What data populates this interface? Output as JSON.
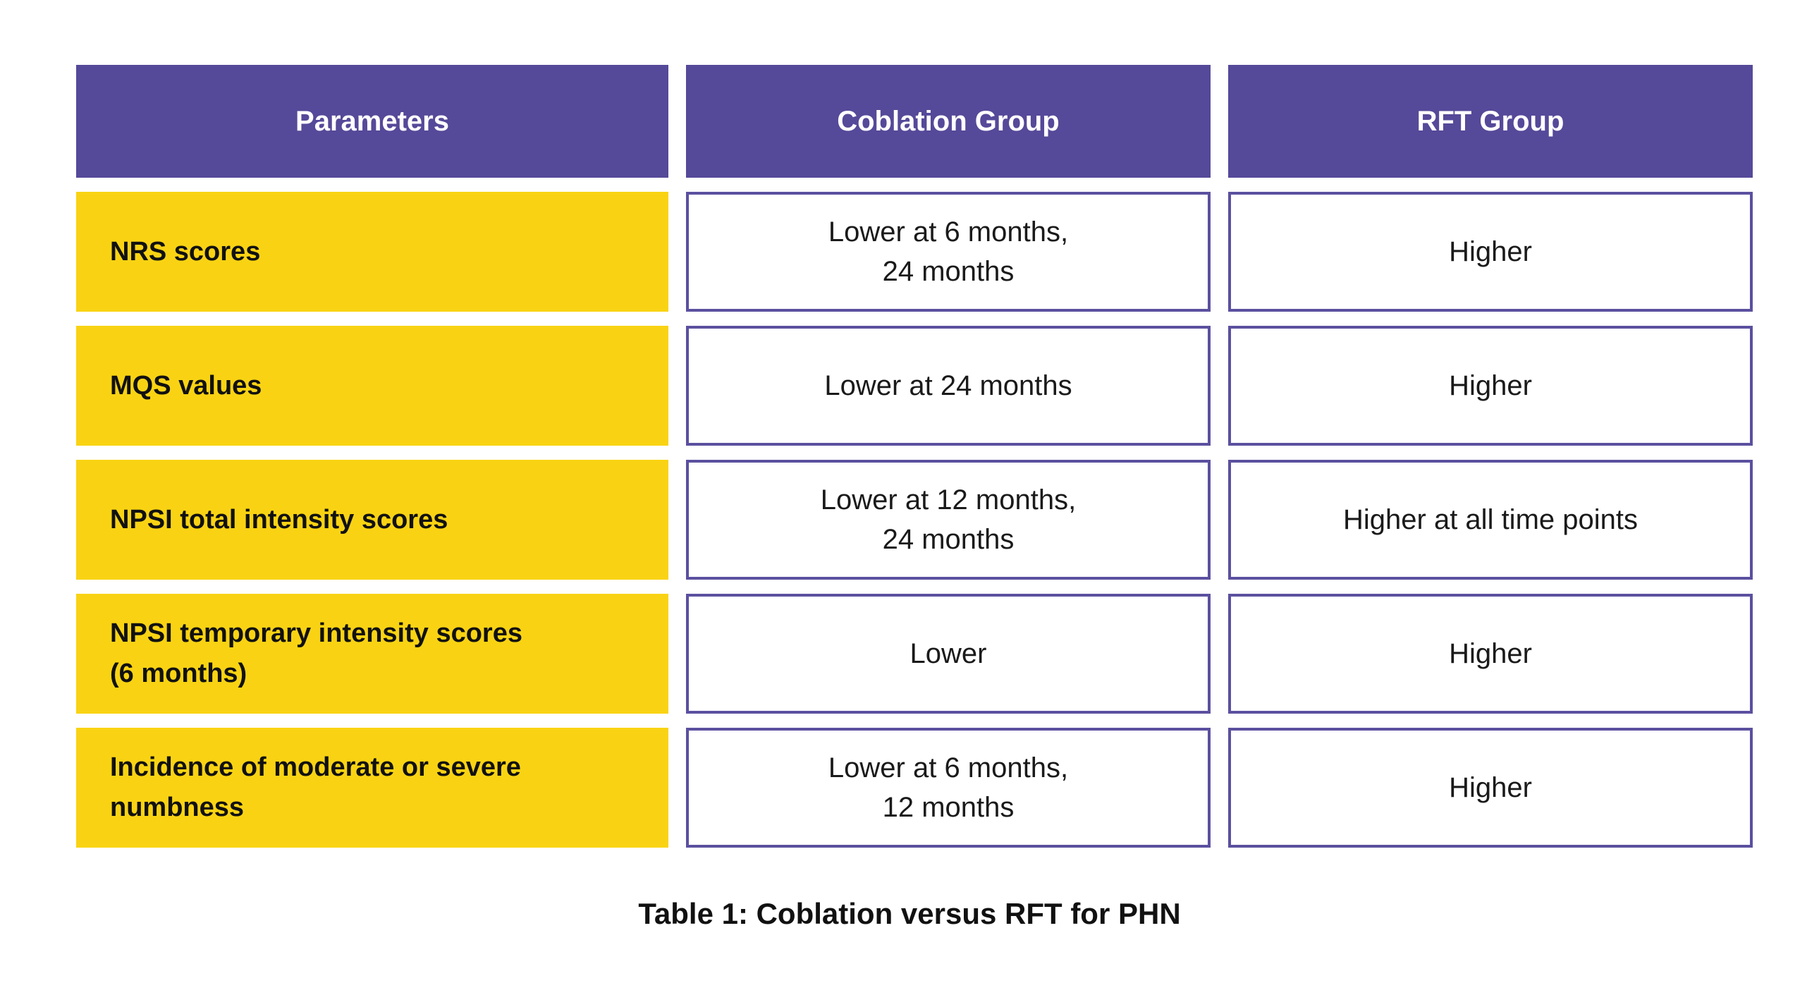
{
  "table": {
    "headers": [
      {
        "id": "parameters",
        "label": "Parameters"
      },
      {
        "id": "coblation-group",
        "label": "Coblation Group"
      },
      {
        "id": "rft-group",
        "label": "RFT Group"
      }
    ],
    "rows": [
      {
        "parameter": "NRS scores",
        "coblation": "Lower at 6 months,\n24 months",
        "rft": "Higher"
      },
      {
        "parameter": "MQS values",
        "coblation": "Lower at 24 months",
        "rft": "Higher"
      },
      {
        "parameter": "NPSI total intensity scores",
        "coblation": "Lower at 12 months,\n24 months",
        "rft": "Higher at all time points"
      },
      {
        "parameter": "NPSI temporary intensity scores\n(6 months)",
        "coblation": "Lower",
        "rft": "Higher"
      },
      {
        "parameter": "Incidence of moderate or severe\nnumbness",
        "coblation": "Lower at 6 months,\n12 months",
        "rft": "Higher"
      }
    ],
    "caption": "Table 1: Coblation versus RFT for PHN"
  },
  "colors": {
    "header_bg": "#554999",
    "header_text": "#ffffff",
    "parameter_bg": "#F9D313",
    "parameter_text": "#111111",
    "cell_border": "#5b509f",
    "cell_bg": "#ffffff",
    "cell_text": "#1a1a1a",
    "caption_text": "#111111"
  },
  "chart_data": {
    "type": "table",
    "title": "Table 1: Coblation versus RFT for PHN",
    "columns": [
      "Parameters",
      "Coblation Group",
      "RFT Group"
    ],
    "rows": [
      [
        "NRS scores",
        "Lower at 6 months, 24 months",
        "Higher"
      ],
      [
        "MQS values",
        "Lower at 24 months",
        "Higher"
      ],
      [
        "NPSI total intensity scores",
        "Lower at 12 months, 24 months",
        "Higher at all time points"
      ],
      [
        "NPSI temporary intensity scores (6 months)",
        "Lower",
        "Higher"
      ],
      [
        "Incidence of moderate or severe numbness",
        "Lower at 6 months, 12 months",
        "Higher"
      ]
    ],
    "layout": {
      "header_position": "top",
      "grid": "separated-cells",
      "caption_position": "bottom-center"
    }
  }
}
